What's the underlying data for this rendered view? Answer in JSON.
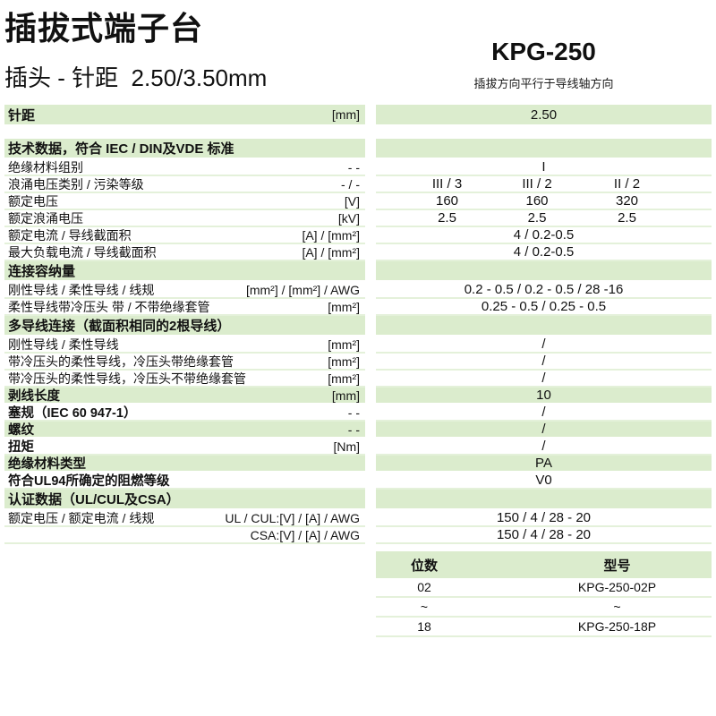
{
  "page": {
    "title": "插拔式端子台",
    "subtitle": "插头 - 针距  2.50/3.50mm",
    "model": "KPG-250",
    "model_note": "插拔方向平行于导线轴方向"
  },
  "colors": {
    "row_green": "#dbeccd",
    "separator": "#e4f1da",
    "text": "#111111"
  },
  "spec": {
    "rows": [
      {
        "label": "针距",
        "unit": "[mm]",
        "value": "2.50"
      },
      {
        "label": "技术数据，符合 IEC / DIN及VDE 标准",
        "unit": "",
        "value": ""
      },
      {
        "label": "绝缘材料组别",
        "unit": "- -",
        "value": "I"
      },
      {
        "label": "浪涌电压类别 / 污染等级",
        "unit": "- / -",
        "values": [
          "III / 3",
          "III / 2",
          "II / 2"
        ]
      },
      {
        "label": "额定电压",
        "unit": "[V]",
        "values": [
          "160",
          "160",
          "320"
        ]
      },
      {
        "label": "额定浪涌电压",
        "unit": "[kV]",
        "values": [
          "2.5",
          "2.5",
          "2.5"
        ]
      },
      {
        "label": "额定电流 / 导线截面积",
        "unit": "[A] / [mm²]",
        "value": "4 / 0.2-0.5"
      },
      {
        "label": "最大负载电流 / 导线截面积",
        "unit": "[A] / [mm²]",
        "value": "4 / 0.2-0.5"
      },
      {
        "label": "连接容纳量",
        "unit": "",
        "value": ""
      },
      {
        "label": "刚性导线 / 柔性导线 / 线规",
        "unit": "[mm²] / [mm²] / AWG",
        "value": "0.2 - 0.5 / 0.2 - 0.5 / 28 -16"
      },
      {
        "label": "柔性导线带冷压头 带 / 不带绝缘套管",
        "unit": "[mm²]",
        "value": "0.25 - 0.5 / 0.25 - 0.5"
      },
      {
        "label": "多导线连接（截面积相同的2根导线）",
        "unit": "",
        "value": ""
      },
      {
        "label": "刚性导线 / 柔性导线",
        "unit": "[mm²]",
        "value": "/"
      },
      {
        "label": "带冷压头的柔性导线，冷压头带绝缘套管",
        "unit": "[mm²]",
        "value": "/"
      },
      {
        "label": "带冷压头的柔性导线，冷压头不带绝缘套管",
        "unit": "[mm²]",
        "value": "/"
      },
      {
        "label": "剥线长度",
        "unit": "[mm]",
        "value": "10"
      },
      {
        "label": "塞规（IEC 60 947-1）",
        "unit": "- -",
        "value": "/"
      },
      {
        "label": "螺纹",
        "unit": "- -",
        "value": "/"
      },
      {
        "label": "扭矩",
        "unit": "[Nm]",
        "value": "/"
      },
      {
        "label": "绝缘材料类型",
        "unit": "",
        "value": "PA"
      },
      {
        "label": "符合UL94所确定的阻燃等级",
        "unit": "",
        "value": "V0"
      },
      {
        "label": "认证数据（UL/CUL及CSA）",
        "unit": "",
        "value": ""
      },
      {
        "label": "额定电压 / 额定电流 / 线规",
        "unit": "UL / CUL:[V] / [A] / AWG",
        "value": "150 / 4 / 28 - 20"
      },
      {
        "label": "",
        "unit": "CSA:[V] / [A] / AWG",
        "value": "150 / 4 / 28 - 20"
      }
    ]
  },
  "order_table": {
    "headers": {
      "positions": "位数",
      "model": "型号"
    },
    "rows": [
      {
        "positions": "02",
        "model": "KPG-250-02P"
      },
      {
        "positions": "~",
        "model": "~"
      },
      {
        "positions": "18",
        "model": "KPG-250-18P"
      }
    ]
  }
}
